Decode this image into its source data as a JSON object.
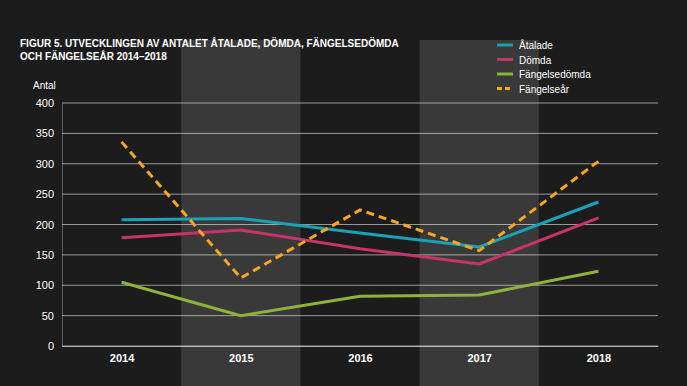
{
  "chart_data": {
    "type": "line",
    "title": "FIGUR 5. UTVECKLINGEN AV ANTALET ÅTALADE, DÖMDA, FÄNGELSEDÖMDA\nOCH FÄNGELSEÅR 2014–2018",
    "y_label": "Antal",
    "categories": [
      "2014",
      "2015",
      "2016",
      "2017",
      "2018"
    ],
    "series": [
      {
        "name": "Åtalade",
        "color": "#19a2b4",
        "line_style": "solid",
        "values": [
          208,
          210,
          186,
          163,
          237
        ]
      },
      {
        "name": "Dömda",
        "color": "#c9336c",
        "line_style": "solid",
        "values": [
          178,
          191,
          160,
          135,
          211
        ]
      },
      {
        "name": "Fängelsedömda",
        "color": "#8cb43a",
        "line_style": "solid",
        "values": [
          105,
          50,
          82,
          84,
          123
        ]
      },
      {
        "name": "Fängelseår",
        "color": "#f5a623",
        "line_style": "dashed",
        "values": [
          336,
          112,
          224,
          157,
          304
        ]
      }
    ],
    "ylim": [
      0,
      400
    ],
    "yticks": [
      0,
      50,
      100,
      150,
      200,
      250,
      300,
      350,
      400
    ],
    "grid": true,
    "legend": "top-right"
  }
}
